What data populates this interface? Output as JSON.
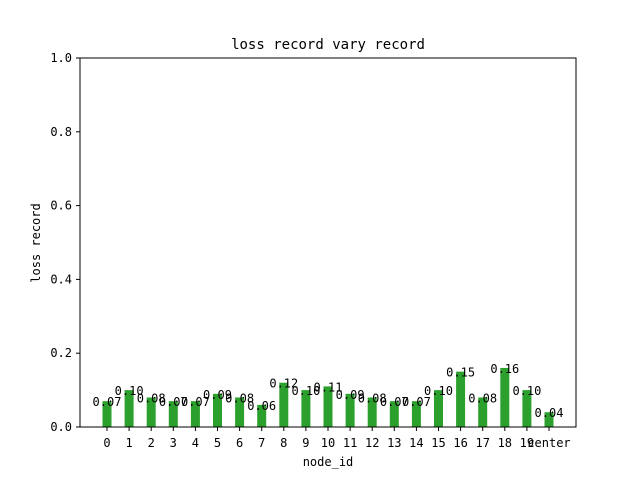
{
  "chart_data": {
    "type": "bar",
    "title": "loss record vary record",
    "xlabel": "node_id",
    "ylabel": "loss record",
    "ylim": [
      0,
      1.0
    ],
    "yticks": [
      "0.0",
      "0.2",
      "0.4",
      "0.6",
      "0.8",
      "1.0"
    ],
    "grid": false,
    "categories": [
      "0",
      "1",
      "2",
      "3",
      "4",
      "5",
      "6",
      "7",
      "8",
      "9",
      "10",
      "11",
      "12",
      "13",
      "14",
      "15",
      "16",
      "17",
      "18",
      "19",
      "center"
    ],
    "values": [
      0.07,
      0.1,
      0.08,
      0.07,
      0.07,
      0.09,
      0.08,
      0.06,
      0.12,
      0.1,
      0.11,
      0.09,
      0.08,
      0.07,
      0.07,
      0.1,
      0.15,
      0.08,
      0.16,
      0.1,
      0.04
    ],
    "data_labels": [
      "0.07",
      "0.10",
      "0.08",
      "0.07",
      "0.07",
      "0.09",
      "0.08",
      "0.06",
      "0.12",
      "0.10",
      "0.11",
      "0.09",
      "0.08",
      "0.07",
      "0.07",
      "0.10",
      "0.15",
      "0.08",
      "0.16",
      "0.10",
      "0.04"
    ],
    "bar_color": "#2ca02c"
  }
}
